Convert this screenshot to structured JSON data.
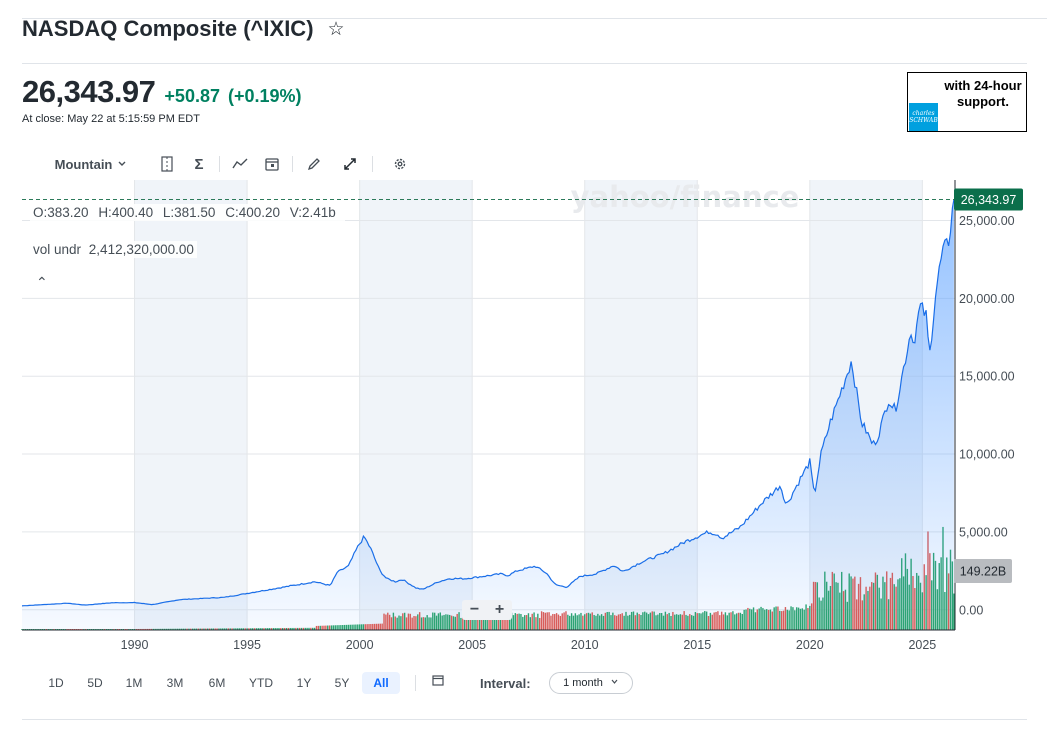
{
  "header": {
    "title": "NASDAQ Composite (^IXIC)",
    "star_icon": "star-outline-icon"
  },
  "quote": {
    "price": "26,343.97",
    "change": "+50.87",
    "change_pct": "(+0.19%)",
    "close_time": "At close: May 22 at 5:15:59 PM EDT",
    "positive_color": "#008060"
  },
  "ad": {
    "text": "with 24-hour support.",
    "logo_text": "charles SCHWAB",
    "logo_color": "#00a0df"
  },
  "toolbar": {
    "chart_type": "Mountain",
    "icons": [
      "chevron-down-icon",
      "compare-icon",
      "indicators-icon",
      "trend-icon",
      "events-calendar-icon",
      "draw-pencil-icon",
      "expand-icon",
      "settings-gear-icon"
    ]
  },
  "legend": {
    "open": "O:383.20",
    "high": "H:400.40",
    "low": "L:381.50",
    "close": "C:400.20",
    "volume": "V:2.41b",
    "vol_undr_label": "vol undr",
    "vol_undr_value": "2,412,320,000.00"
  },
  "watermark": "yahoo/finance",
  "zoom": {
    "minus": "−",
    "plus": "+"
  },
  "ranges": [
    "1D",
    "5D",
    "1M",
    "3M",
    "6M",
    "YTD",
    "1Y",
    "5Y",
    "All"
  ],
  "active_range": "All",
  "interval": {
    "label": "Interval:",
    "value": "1 month"
  },
  "chart_data": {
    "type": "area",
    "title": "",
    "x_ticks": [
      "1990",
      "1995",
      "2000",
      "2005",
      "2010",
      "2015",
      "2020",
      "2025"
    ],
    "y_ticks": [
      "0.00",
      "5,000.00",
      "10,000.00",
      "15,000.00",
      "20,000.00",
      "25,000.00"
    ],
    "ylim": [
      -1300,
      27600
    ],
    "xlim": [
      1985.0,
      2026.45
    ],
    "last_price_label": "26,343.97",
    "last_volume_label": "149.22B",
    "line_color": "#1a6ee8",
    "up_volume_color": "#29a36a",
    "down_volume_color": "#e0584f",
    "series": [
      {
        "name": "",
        "x": [
          1985.0,
          1987.0,
          1987.8,
          1989.0,
          1990.0,
          1990.8,
          1992.0,
          1994.0,
          1995.0,
          1996.0,
          1997.0,
          1998.0,
          1998.7,
          1999.0,
          1999.5,
          1999.9,
          2000.2,
          2000.5,
          2000.9,
          2001.2,
          2001.6,
          2001.9,
          2002.5,
          2002.8,
          2003.5,
          2004.0,
          2004.7,
          2005.5,
          2006.3,
          2006.6,
          2007.0,
          2007.8,
          2008.3,
          2008.7,
          2009.2,
          2009.8,
          2010.5,
          2011.3,
          2011.7,
          2012.5,
          2013.5,
          2014.5,
          2015.5,
          2015.9,
          2016.1,
          2016.9,
          2017.9,
          2018.7,
          2018.95,
          2019.5,
          2020.0,
          2020.2,
          2020.5,
          2020.9,
          2021.5,
          2021.85,
          2022.3,
          2022.5,
          2022.8,
          2023.0,
          2023.5,
          2023.8,
          2024.5,
          2024.6,
          2024.9,
          2025.2,
          2025.3,
          2025.6,
          2025.9,
          2026.15,
          2026.4
        ],
        "y": [
          250,
          420,
          300,
          450,
          460,
          330,
          650,
          800,
          1050,
          1300,
          1550,
          1800,
          1550,
          2400,
          2800,
          4000,
          4700,
          3900,
          2500,
          2000,
          1800,
          1950,
          1400,
          1300,
          1800,
          2000,
          2000,
          2150,
          2300,
          2200,
          2500,
          2800,
          2350,
          1600,
          1450,
          2150,
          2300,
          2850,
          2450,
          3050,
          3600,
          4400,
          5000,
          4850,
          4600,
          5300,
          6900,
          8000,
          6700,
          8200,
          9500,
          7300,
          10000,
          12000,
          14500,
          16000,
          12000,
          11500,
          10600,
          11000,
          13500,
          12800,
          18000,
          17000,
          19500,
          18800,
          16000,
          20500,
          23000,
          23500,
          26343.97
        ]
      }
    ]
  }
}
